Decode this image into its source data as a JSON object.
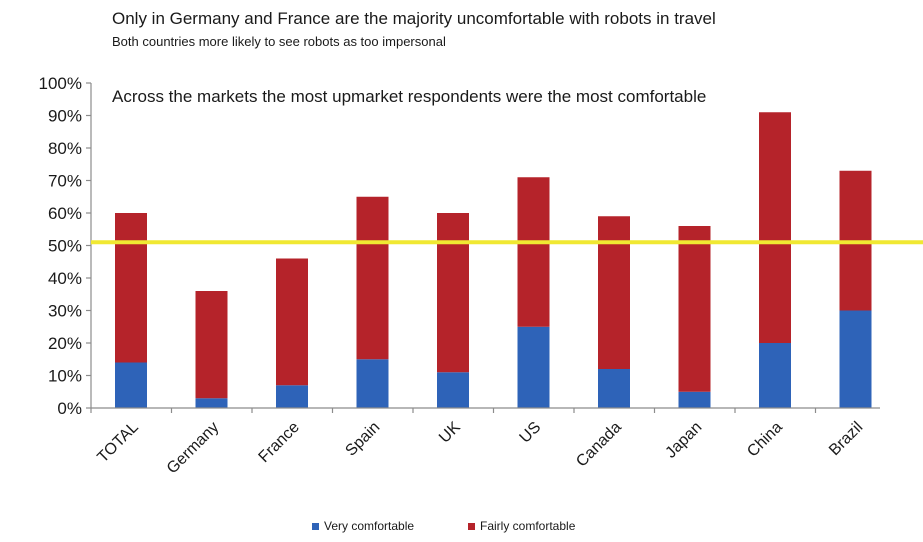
{
  "chart_data": {
    "type": "bar",
    "stacked": true,
    "title": "Only in Germany and France are the majority uncomfortable with robots in travel",
    "subtitle": "Both countries more likely to see robots as too impersonal",
    "annotation": "Across the markets the most upmarket respondents were the most comfortable",
    "categories": [
      "TOTAL",
      "Germany",
      "France",
      "Spain",
      "UK",
      "US",
      "Canada",
      "Japan",
      "China",
      "Brazil"
    ],
    "series": [
      {
        "name": "Very comfortable",
        "color": "#2e63b8",
        "values": [
          14,
          3,
          7,
          15,
          11,
          25,
          12,
          5,
          20,
          30
        ]
      },
      {
        "name": "Fairly comfortable",
        "color": "#b5232a",
        "values": [
          46,
          33,
          39,
          50,
          49,
          46,
          47,
          51,
          71,
          43
        ]
      }
    ],
    "yticks": [
      "0%",
      "10%",
      "20%",
      "30%",
      "40%",
      "50%",
      "60%",
      "70%",
      "80%",
      "90%",
      "100%"
    ],
    "ylim": [
      0,
      100
    ],
    "reference_line": {
      "value": 51,
      "color": "#f0e832"
    },
    "legend_position": "bottom-center",
    "grid": false
  }
}
